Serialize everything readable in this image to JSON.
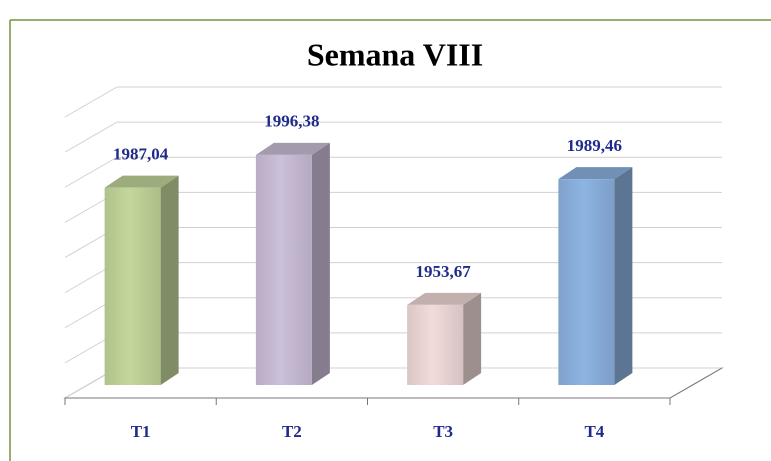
{
  "chart_data": {
    "type": "bar3d",
    "title": "Semana VIII",
    "categories": [
      "T1",
      "T2",
      "T3",
      "T4"
    ],
    "values": [
      1987.04,
      1996.38,
      1953.67,
      1989.46
    ],
    "value_labels": [
      "1987,04",
      "1996,38",
      "1953,67",
      "1989,46"
    ],
    "colors": [
      "#c4d79b",
      "#ccc0da",
      "#f2dcdb",
      "#8db4e2"
    ],
    "ylim": [
      1930,
      2010
    ],
    "yticks": [
      1930,
      1940,
      1950,
      1960,
      1970,
      1980,
      1990,
      2000,
      2010
    ],
    "grid": true
  }
}
